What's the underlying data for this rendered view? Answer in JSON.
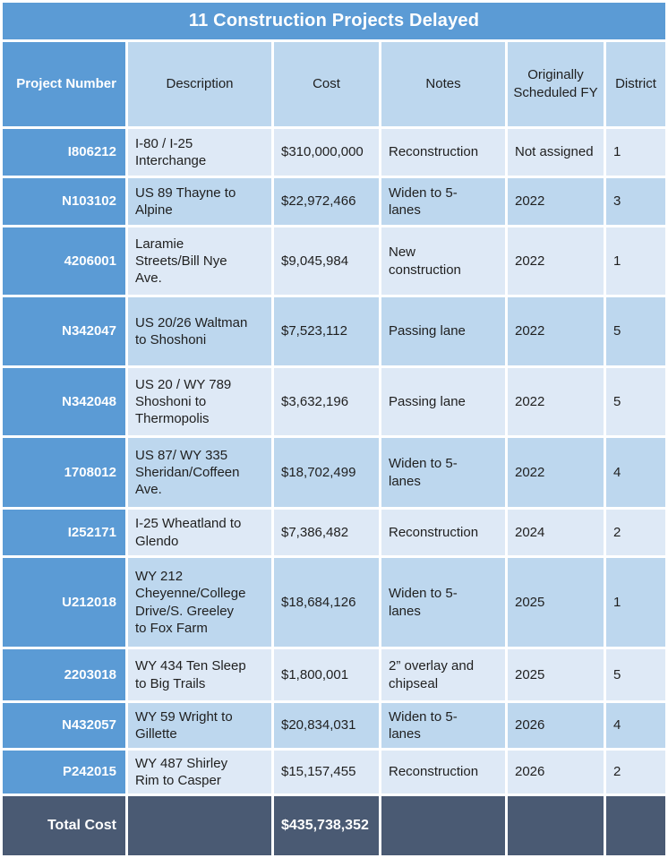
{
  "title": "11 Construction Projects Delayed",
  "columns": [
    {
      "label": "Project Number"
    },
    {
      "label": "Description"
    },
    {
      "label": "Cost"
    },
    {
      "label": "Notes"
    },
    {
      "label": "Originally Scheduled FY"
    },
    {
      "label": "District"
    }
  ],
  "rows": [
    {
      "project_number": "I806212",
      "description": "I-80 / I-25 Interchange",
      "cost": "$310,000,000",
      "notes": "Reconstruction",
      "fy": "Not assigned",
      "district": "1"
    },
    {
      "project_number": "N103102",
      "description": "US 89 Thayne to Alpine",
      "cost": "$22,972,466",
      "notes": "Widen to 5-lanes",
      "fy": "2022",
      "district": "3"
    },
    {
      "project_number": "4206001",
      "description": "Laramie Streets/Bill Nye Ave.",
      "cost": "$9,045,984",
      "notes": "New construction",
      "fy": "2022",
      "district": "1"
    },
    {
      "project_number": "N342047",
      "description": "US 20/26 Waltman to Shoshoni",
      "cost": "$7,523,112",
      "notes": "Passing lane",
      "fy": "2022",
      "district": "5"
    },
    {
      "project_number": "N342048",
      "description": "US 20 / WY 789 Shoshoni to Thermopolis",
      "cost": "$3,632,196",
      "notes": "Passing lane",
      "fy": "2022",
      "district": "5"
    },
    {
      "project_number": "1708012",
      "description": "US 87/ WY 335 Sheridan/Coffeen Ave.",
      "cost": "$18,702,499",
      "notes": "Widen to 5-lanes",
      "fy": "2022",
      "district": "4"
    },
    {
      "project_number": "I252171",
      "description": "I-25 Wheatland to Glendo",
      "cost": "$7,386,482",
      "notes": "Reconstruction",
      "fy": "2024",
      "district": "2"
    },
    {
      "project_number": "U212018",
      "description": "WY 212 Cheyenne/College Drive/S. Greeley to Fox Farm",
      "cost": "$18,684,126",
      "notes": "Widen to 5-lanes",
      "fy": "2025",
      "district": "1"
    },
    {
      "project_number": "2203018",
      "description": "WY 434 Ten Sleep to Big Trails",
      "cost": "$1,800,001",
      "notes": "2” overlay and chipseal",
      "fy": "2025",
      "district": "5"
    },
    {
      "project_number": "N432057",
      "description": "WY 59 Wright to Gillette",
      "cost": "$20,834,031",
      "notes": "Widen to 5-lanes",
      "fy": "2026",
      "district": "4"
    },
    {
      "project_number": "P242015",
      "description": "WY 487 Shirley Rim to Casper",
      "cost": "$15,157,455",
      "notes": "Reconstruction",
      "fy": "2026",
      "district": "2"
    }
  ],
  "total_row": {
    "label": "Total Cost",
    "cost": "$435,738,352"
  },
  "colors": {
    "accent_blue": "#5b9bd5",
    "band_light": "#dee9f6",
    "band_medium": "#bdd7ee",
    "total_dark": "#4a5a73",
    "grid_white": "#ffffff"
  },
  "chart_data": {
    "type": "table",
    "title": "11 Construction Projects Delayed",
    "columns": [
      "Project Number",
      "Description",
      "Cost",
      "Notes",
      "Originally Scheduled FY",
      "District"
    ],
    "rows": [
      [
        "I806212",
        "I-80 / I-25 Interchange",
        "$310,000,000",
        "Reconstruction",
        "Not assigned",
        "1"
      ],
      [
        "N103102",
        "US 89 Thayne to Alpine",
        "$22,972,466",
        "Widen to 5-lanes",
        "2022",
        "3"
      ],
      [
        "4206001",
        "Laramie Streets/Bill Nye Ave.",
        "$9,045,984",
        "New construction",
        "2022",
        "1"
      ],
      [
        "N342047",
        "US 20/26 Waltman to Shoshoni",
        "$7,523,112",
        "Passing lane",
        "2022",
        "5"
      ],
      [
        "N342048",
        "US 20 / WY 789 Shoshoni to Thermopolis",
        "$3,632,196",
        "Passing lane",
        "2022",
        "5"
      ],
      [
        "1708012",
        "US 87/ WY 335 Sheridan/Coffeen Ave.",
        "$18,702,499",
        "Widen to 5-lanes",
        "2022",
        "4"
      ],
      [
        "I252171",
        "I-25 Wheatland to Glendo",
        "$7,386,482",
        "Reconstruction",
        "2024",
        "2"
      ],
      [
        "U212018",
        "WY 212 Cheyenne/College Drive/S. Greeley to Fox Farm",
        "$18,684,126",
        "Widen to 5-lanes",
        "2025",
        "1"
      ],
      [
        "2203018",
        "WY 434 Ten Sleep to Big Trails",
        "$1,800,001",
        "2” overlay and chipseal",
        "2025",
        "5"
      ],
      [
        "N432057",
        "WY 59 Wright to Gillette",
        "$20,834,031",
        "Widen to 5-lanes",
        "2026",
        "4"
      ],
      [
        "P242015",
        "WY 487 Shirley Rim to Casper",
        "$15,157,455",
        "Reconstruction",
        "2026",
        "2"
      ]
    ],
    "cost_values_numeric": [
      310000000,
      22972466,
      9045984,
      7523112,
      3632196,
      18702499,
      7386482,
      18684126,
      1800001,
      20834031,
      15157455
    ],
    "total_label": "Total Cost",
    "total_cost": "$435,738,352",
    "total_cost_numeric": 435738352
  }
}
